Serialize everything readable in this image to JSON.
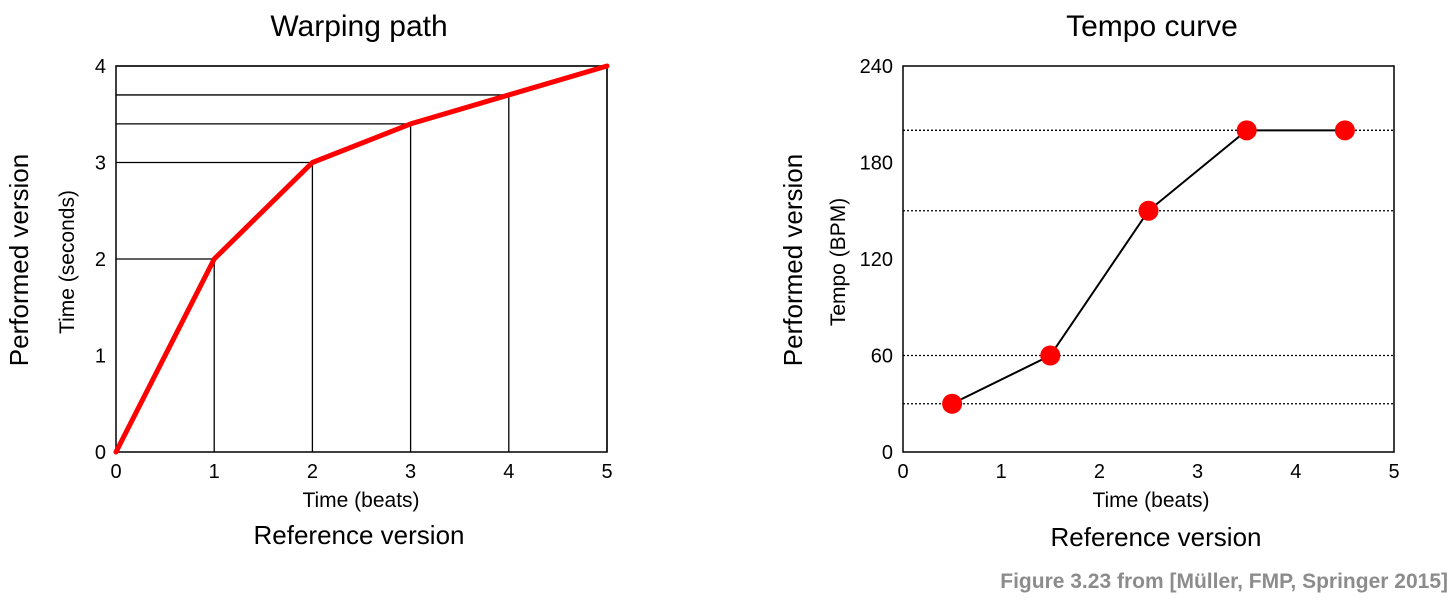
{
  "chart_data": [
    {
      "type": "line",
      "title": "Warping path",
      "xlabel": "Time (beats)",
      "ylabel": "Time (seconds)",
      "x_superlabel": "Reference version",
      "y_superlabel": "Performed version",
      "xlim": [
        0,
        5
      ],
      "ylim": [
        0,
        4
      ],
      "xticks": [
        "0",
        "1",
        "2",
        "3",
        "4",
        "5"
      ],
      "yticks": [
        "0",
        "1",
        "2",
        "3",
        "4"
      ],
      "series": [
        {
          "x": [
            0,
            1,
            2,
            3,
            4,
            5
          ],
          "y": [
            0,
            2,
            3,
            3.4,
            3.7,
            4
          ],
          "color": "#ff0000"
        }
      ],
      "guide_lines": true
    },
    {
      "type": "line",
      "title": "Tempo curve",
      "xlabel": "Time (beats)",
      "ylabel": "Tempo (BPM)",
      "x_superlabel": "Reference version",
      "y_superlabel": "Performed version",
      "xlim": [
        0,
        5
      ],
      "ylim": [
        0,
        240
      ],
      "xticks": [
        "0",
        "1",
        "2",
        "3",
        "4",
        "5"
      ],
      "yticks": [
        "0",
        "60",
        "120",
        "180",
        "240"
      ],
      "series": [
        {
          "x": [
            0.5,
            1.5,
            2.5,
            3.5,
            4.5
          ],
          "y": [
            30,
            60,
            150,
            200,
            200
          ],
          "color": "#000000",
          "marker_color": "#ff0000"
        }
      ],
      "dotted_reference_lines": true
    }
  ],
  "caption": "Figure 3.23 from [Müller, FMP, Springer 2015]"
}
